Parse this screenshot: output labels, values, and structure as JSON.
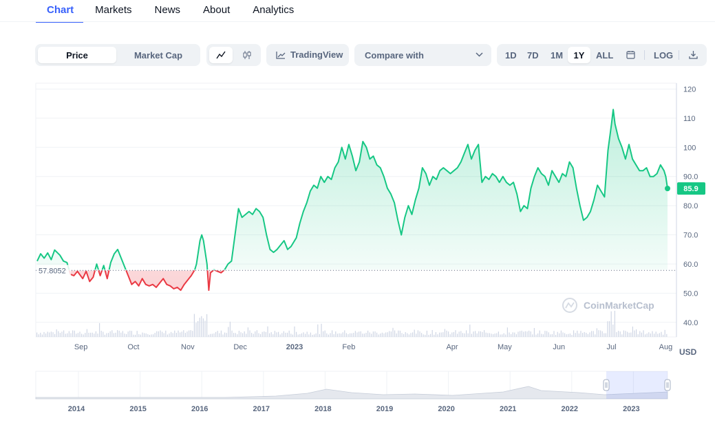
{
  "tabs": [
    "Chart",
    "Markets",
    "News",
    "About",
    "Analytics"
  ],
  "toolbar": {
    "price_label": "Price",
    "market_cap_label": "Market Cap",
    "tradingview_label": "TradingView",
    "compare_label": "Compare with",
    "ranges": [
      "1D",
      "7D",
      "1M",
      "1Y",
      "ALL"
    ],
    "active_range": "1Y",
    "log_label": "LOG"
  },
  "currency_label": "USD",
  "watermark": "CoinMarketCap",
  "colors": {
    "up": "#16c784",
    "down": "#ea3943",
    "accent": "#3861fb"
  },
  "chart_data": {
    "type": "line",
    "ylim": [
      35,
      122
    ],
    "yticks": [
      "120",
      "110",
      "100",
      "90.0",
      "80.0",
      "70.0",
      "60.0",
      "50.0",
      "40.0"
    ],
    "xticks": [
      "Sep",
      "Oct",
      "Nov",
      "Dec",
      "2023",
      "Feb",
      "Apr",
      "May",
      "Jun",
      "Jul",
      "Aug"
    ],
    "reference_value": 57.8052,
    "reference_label": "57.8052",
    "current_value": 85.9,
    "current_label": "85.9",
    "series": [
      {
        "points": [
          [
            "2022-08-07",
            61
          ],
          [
            "2022-08-09",
            63.5
          ],
          [
            "2022-08-11",
            62
          ],
          [
            "2022-08-13",
            63.8
          ],
          [
            "2022-08-15",
            61.5
          ],
          [
            "2022-08-17",
            64.8
          ],
          [
            "2022-08-20",
            63
          ],
          [
            "2022-08-22",
            61
          ],
          [
            "2022-08-24",
            60.5
          ],
          [
            "2022-08-26",
            56.5
          ],
          [
            "2022-08-28",
            56
          ],
          [
            "2022-08-30",
            57.5
          ],
          [
            "2022-09-02",
            55
          ],
          [
            "2022-09-04",
            57.5
          ],
          [
            "2022-09-06",
            54
          ],
          [
            "2022-09-08",
            55.5
          ],
          [
            "2022-09-10",
            60
          ],
          [
            "2022-09-12",
            56
          ],
          [
            "2022-09-14",
            59.5
          ],
          [
            "2022-09-16",
            55
          ],
          [
            "2022-09-18",
            60.5
          ],
          [
            "2022-09-20",
            63.5
          ],
          [
            "2022-09-22",
            65
          ],
          [
            "2022-09-24",
            62
          ],
          [
            "2022-09-26",
            59
          ],
          [
            "2022-09-28",
            56
          ],
          [
            "2022-09-30",
            53
          ],
          [
            "2022-10-02",
            54
          ],
          [
            "2022-10-04",
            52.5
          ],
          [
            "2022-10-06",
            55
          ],
          [
            "2022-10-08",
            53
          ],
          [
            "2022-10-10",
            52.5
          ],
          [
            "2022-10-12",
            53
          ],
          [
            "2022-10-14",
            52
          ],
          [
            "2022-10-16",
            53.5
          ],
          [
            "2022-10-18",
            55
          ],
          [
            "2022-10-20",
            53
          ],
          [
            "2022-10-22",
            52.5
          ],
          [
            "2022-10-24",
            51.5
          ],
          [
            "2022-10-26",
            52
          ],
          [
            "2022-10-28",
            51
          ],
          [
            "2022-10-30",
            53
          ],
          [
            "2022-11-01",
            54.5
          ],
          [
            "2022-11-03",
            56
          ],
          [
            "2022-11-05",
            58
          ],
          [
            "2022-11-06",
            60
          ],
          [
            "2022-11-08",
            68
          ],
          [
            "2022-11-09",
            70
          ],
          [
            "2022-11-10",
            68
          ],
          [
            "2022-11-12",
            60
          ],
          [
            "2022-11-13",
            51
          ],
          [
            "2022-11-14",
            57
          ],
          [
            "2022-11-16",
            58
          ],
          [
            "2022-11-18",
            57.5
          ],
          [
            "2022-11-20",
            57
          ],
          [
            "2022-11-22",
            58
          ],
          [
            "2022-11-24",
            60
          ],
          [
            "2022-11-26",
            61
          ],
          [
            "2022-11-28",
            70
          ],
          [
            "2022-11-30",
            79
          ],
          [
            "2022-12-02",
            76
          ],
          [
            "2022-12-04",
            77
          ],
          [
            "2022-12-06",
            78
          ],
          [
            "2022-12-08",
            77
          ],
          [
            "2022-12-10",
            79
          ],
          [
            "2022-12-12",
            78
          ],
          [
            "2022-12-14",
            76
          ],
          [
            "2022-12-16",
            70
          ],
          [
            "2022-12-18",
            65
          ],
          [
            "2022-12-20",
            64
          ],
          [
            "2022-12-22",
            65
          ],
          [
            "2022-12-24",
            66.5
          ],
          [
            "2022-12-26",
            68
          ],
          [
            "2022-12-28",
            65
          ],
          [
            "2022-12-30",
            66
          ],
          [
            "2023-01-02",
            69
          ],
          [
            "2023-01-04",
            74
          ],
          [
            "2023-01-06",
            78
          ],
          [
            "2023-01-08",
            81
          ],
          [
            "2023-01-10",
            85
          ],
          [
            "2023-01-12",
            87
          ],
          [
            "2023-01-14",
            86
          ],
          [
            "2023-01-16",
            90
          ],
          [
            "2023-01-18",
            88
          ],
          [
            "2023-01-20",
            90
          ],
          [
            "2023-01-22",
            89
          ],
          [
            "2023-01-24",
            93
          ],
          [
            "2023-01-26",
            95
          ],
          [
            "2023-01-28",
            100
          ],
          [
            "2023-01-30",
            96
          ],
          [
            "2023-02-01",
            101
          ],
          [
            "2023-02-03",
            97
          ],
          [
            "2023-02-05",
            92
          ],
          [
            "2023-02-07",
            95
          ],
          [
            "2023-02-09",
            102
          ],
          [
            "2023-02-11",
            100
          ],
          [
            "2023-02-13",
            96
          ],
          [
            "2023-02-15",
            97
          ],
          [
            "2023-02-17",
            94
          ],
          [
            "2023-02-19",
            93
          ],
          [
            "2023-02-21",
            90
          ],
          [
            "2023-02-23",
            86
          ],
          [
            "2023-02-25",
            84
          ],
          [
            "2023-02-27",
            81
          ],
          [
            "2023-03-01",
            75
          ],
          [
            "2023-03-03",
            70
          ],
          [
            "2023-03-05",
            76
          ],
          [
            "2023-03-07",
            80
          ],
          [
            "2023-03-09",
            77
          ],
          [
            "2023-03-11",
            82
          ],
          [
            "2023-03-13",
            86
          ],
          [
            "2023-03-15",
            93
          ],
          [
            "2023-03-17",
            91
          ],
          [
            "2023-03-19",
            87
          ],
          [
            "2023-03-21",
            90
          ],
          [
            "2023-03-23",
            89
          ],
          [
            "2023-03-25",
            92
          ],
          [
            "2023-03-27",
            93
          ],
          [
            "2023-03-29",
            92
          ],
          [
            "2023-03-31",
            91
          ],
          [
            "2023-04-02",
            92
          ],
          [
            "2023-04-04",
            93
          ],
          [
            "2023-04-06",
            95
          ],
          [
            "2023-04-08",
            98
          ],
          [
            "2023-04-10",
            101
          ],
          [
            "2023-04-12",
            96
          ],
          [
            "2023-04-14",
            99
          ],
          [
            "2023-04-16",
            101
          ],
          [
            "2023-04-18",
            88
          ],
          [
            "2023-04-20",
            90
          ],
          [
            "2023-04-22",
            89
          ],
          [
            "2023-04-24",
            91
          ],
          [
            "2023-04-26",
            90
          ],
          [
            "2023-04-28",
            88
          ],
          [
            "2023-04-30",
            90
          ],
          [
            "2023-05-02",
            88
          ],
          [
            "2023-05-04",
            87
          ],
          [
            "2023-05-06",
            88
          ],
          [
            "2023-05-08",
            84
          ],
          [
            "2023-05-10",
            78
          ],
          [
            "2023-05-12",
            80
          ],
          [
            "2023-05-14",
            79
          ],
          [
            "2023-05-16",
            86
          ],
          [
            "2023-05-18",
            90
          ],
          [
            "2023-05-20",
            93
          ],
          [
            "2023-05-22",
            91
          ],
          [
            "2023-05-24",
            90
          ],
          [
            "2023-05-26",
            87
          ],
          [
            "2023-05-28",
            92
          ],
          [
            "2023-05-30",
            90
          ],
          [
            "2023-06-01",
            88
          ],
          [
            "2023-06-03",
            91
          ],
          [
            "2023-06-05",
            90
          ],
          [
            "2023-06-07",
            95
          ],
          [
            "2023-06-09",
            93
          ],
          [
            "2023-06-11",
            86
          ],
          [
            "2023-06-13",
            80
          ],
          [
            "2023-06-15",
            75
          ],
          [
            "2023-06-17",
            76
          ],
          [
            "2023-06-19",
            78
          ],
          [
            "2023-06-21",
            82
          ],
          [
            "2023-06-23",
            87
          ],
          [
            "2023-06-25",
            85
          ],
          [
            "2023-06-27",
            83
          ],
          [
            "2023-06-29",
            99
          ],
          [
            "2023-07-01",
            108
          ],
          [
            "2023-07-02",
            113
          ],
          [
            "2023-07-03",
            108
          ],
          [
            "2023-07-05",
            103
          ],
          [
            "2023-07-07",
            100
          ],
          [
            "2023-07-09",
            96
          ],
          [
            "2023-07-11",
            101
          ],
          [
            "2023-07-13",
            96
          ],
          [
            "2023-07-15",
            94
          ],
          [
            "2023-07-17",
            92
          ],
          [
            "2023-07-19",
            92
          ],
          [
            "2023-07-21",
            93
          ],
          [
            "2023-07-23",
            90
          ],
          [
            "2023-07-25",
            90
          ],
          [
            "2023-07-27",
            91
          ],
          [
            "2023-07-29",
            94
          ],
          [
            "2023-07-31",
            92
          ],
          [
            "2023-08-01",
            90
          ],
          [
            "2023-08-02",
            85.9
          ]
        ]
      }
    ]
  },
  "navigator": {
    "years": [
      "2014",
      "2015",
      "2016",
      "2017",
      "2018",
      "2019",
      "2020",
      "2021",
      "2022",
      "2023"
    ]
  }
}
